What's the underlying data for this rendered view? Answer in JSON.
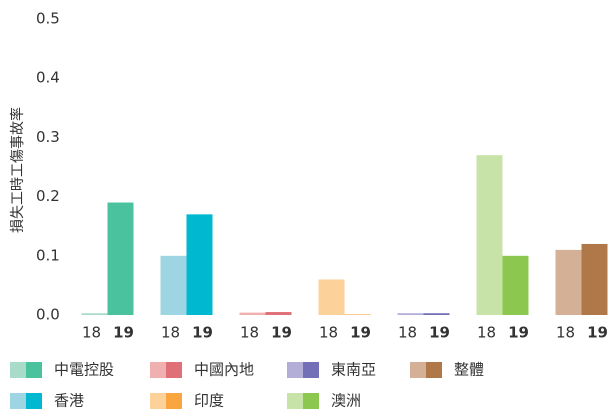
{
  "chart_data": {
    "type": "bar",
    "ylabel": "損失工時工傷事故率",
    "categories": [
      "中電控股",
      "香港",
      "中國內地",
      "印度",
      "東南亞",
      "澳洲",
      "整體"
    ],
    "series": [
      {
        "name": "18",
        "colors": [
          "#a8dcc8",
          "#9dd6e2",
          "#f0b0b0",
          "#fdd29a",
          "#b3aed8",
          "#c8e3a8",
          "#d4b096"
        ],
        "values": [
          0.003,
          0.1,
          0.004,
          0.06,
          0.003,
          0.27,
          0.11
        ]
      },
      {
        "name": "19",
        "colors": [
          "#4ac29d",
          "#00b9d1",
          "#e07078",
          "#f9a640",
          "#7470b8",
          "#8cc850",
          "#b07848"
        ],
        "values": [
          0.19,
          0.17,
          0.005,
          0.001,
          0.003,
          0.1,
          0.12
        ]
      }
    ],
    "ylim": [
      0,
      0.5
    ],
    "yticks": [
      {
        "value": 0,
        "label": "0.0"
      },
      0.1,
      0.2,
      0.3,
      0.4,
      0.5
    ]
  }
}
